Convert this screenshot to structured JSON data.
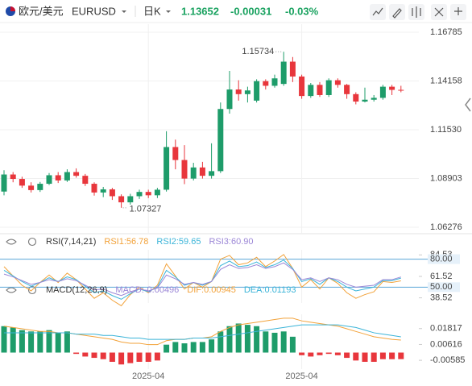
{
  "header": {
    "pair": "欧元/美元",
    "symbol": "EURUSD",
    "period": "日K",
    "price": "1.13652",
    "change": "-0.00031",
    "change_pct": "-0.03%"
  },
  "chart_data": [
    {
      "type": "candlestick",
      "up_color": "#1e9c6a",
      "down_color": "#e8363c",
      "grid": true,
      "categories": [
        null,
        null,
        null,
        null,
        null,
        null,
        null,
        null,
        null,
        null,
        null,
        null,
        null,
        null,
        null,
        null,
        "2025-04",
        null,
        null,
        null,
        null,
        null,
        null,
        null,
        null,
        null,
        null,
        null,
        null,
        null,
        null,
        null,
        null,
        "2025-04",
        null,
        null,
        null,
        null,
        null,
        null,
        null,
        null,
        null,
        null,
        null
      ],
      "open": [
        1.082,
        1.0912,
        1.0888,
        1.0852,
        1.0828,
        1.0862,
        1.0908,
        1.088,
        1.0925,
        1.0905,
        1.0862,
        1.0815,
        1.0832,
        1.0795,
        1.0762,
        1.0795,
        1.0818,
        1.08,
        1.083,
        1.106,
        1.099,
        1.089,
        1.095,
        1.0905,
        1.093,
        1.1265,
        1.137,
        1.1345,
        1.131,
        1.1415,
        1.139,
        1.14,
        1.152,
        1.144,
        1.1335,
        1.1395,
        1.134,
        1.142,
        1.1395,
        1.1345,
        1.1305,
        1.1315,
        1.1325,
        1.1385,
        1.1368
      ],
      "high": [
        1.0935,
        1.0925,
        1.09,
        1.087,
        1.0872,
        1.092,
        1.0925,
        1.094,
        1.0945,
        1.0915,
        1.087,
        1.0845,
        1.084,
        1.0805,
        1.0808,
        1.083,
        1.083,
        1.084,
        1.1145,
        1.11,
        1.107,
        1.0975,
        1.098,
        1.108,
        1.13,
        1.147,
        1.142,
        1.1385,
        1.1425,
        1.1425,
        1.145,
        1.15734,
        1.1545,
        1.145,
        1.1405,
        1.141,
        1.143,
        1.143,
        1.14,
        1.1355,
        1.138,
        1.134,
        1.1395,
        1.1395,
        1.139
      ],
      "low": [
        1.08,
        1.087,
        1.084,
        1.0815,
        1.0818,
        1.0855,
        1.0866,
        1.0872,
        1.0895,
        1.085,
        1.0798,
        1.079,
        1.0775,
        1.07327,
        1.075,
        1.078,
        1.0785,
        1.0785,
        1.082,
        1.094,
        1.086,
        1.088,
        1.089,
        1.089,
        1.092,
        1.124,
        1.131,
        1.13,
        1.13,
        1.137,
        1.138,
        1.139,
        1.141,
        1.132,
        1.1325,
        1.133,
        1.133,
        1.138,
        1.132,
        1.129,
        1.13,
        1.1305,
        1.1315,
        1.134,
        1.1355
      ],
      "close": [
        1.0912,
        1.0888,
        1.0852,
        1.0828,
        1.0862,
        1.0908,
        1.088,
        1.0925,
        1.0905,
        1.0862,
        1.0815,
        1.0832,
        1.0795,
        1.0762,
        1.0795,
        1.0818,
        1.08,
        1.083,
        1.106,
        1.099,
        1.089,
        1.095,
        1.0905,
        1.093,
        1.1265,
        1.137,
        1.1345,
        1.1365,
        1.1415,
        1.139,
        1.143,
        1.152,
        1.144,
        1.1335,
        1.1395,
        1.134,
        1.142,
        1.1395,
        1.1345,
        1.1305,
        1.1315,
        1.1325,
        1.1385,
        1.1368,
        1.13652
      ],
      "ylim": [
        1.0593,
        1.1722
      ],
      "yticks": [
        1.16785,
        1.14158,
        {
          "value": 1.1153,
          "label": "1.11530"
        },
        1.08903,
        1.06276
      ]
    },
    {
      "type": "line",
      "title": "RSI(7,14,21)",
      "ylim": [
        33,
        90
      ],
      "yticks": [
        84.53,
        61.52,
        38.52
      ],
      "hlines": [
        {
          "value": 80,
          "label": "80.00"
        },
        {
          "value": 50,
          "label": "50.00"
        }
      ],
      "hline_color": "#5aa6d8",
      "series": [
        {
          "name": "RSI1:56.78",
          "color": "#f2a23a",
          "values": [
            72,
            62,
            52,
            46,
            55,
            63,
            55,
            65,
            58,
            48,
            38,
            44,
            36,
            30,
            42,
            50,
            44,
            52,
            75,
            62,
            48,
            55,
            50,
            56,
            80,
            84,
            74,
            76,
            82,
            72,
            78,
            85,
            70,
            50,
            58,
            48,
            60,
            54,
            44,
            38,
            42,
            45,
            56,
            55,
            56.78
          ]
        },
        {
          "name": "RSI2:59.65",
          "color": "#3bb4d8",
          "values": [
            68,
            62,
            56,
            51,
            55,
            60,
            56,
            61,
            58,
            51,
            44,
            46,
            41,
            37,
            43,
            48,
            45,
            50,
            68,
            61,
            52,
            55,
            52,
            56,
            73,
            78,
            72,
            73,
            77,
            71,
            74,
            79,
            70,
            56,
            59,
            53,
            60,
            56,
            50,
            46,
            48,
            50,
            57,
            57,
            59.65
          ]
        },
        {
          "name": "RSI3:60.90",
          "color": "#9b86d6",
          "values": [
            64,
            61,
            57,
            53,
            55,
            58,
            56,
            59,
            57,
            52,
            47,
            48,
            44,
            41,
            45,
            48,
            46,
            49,
            63,
            59,
            53,
            55,
            53,
            56,
            69,
            74,
            70,
            71,
            74,
            70,
            72,
            76,
            69,
            58,
            60,
            56,
            60,
            58,
            53,
            50,
            51,
            52,
            58,
            58,
            60.9
          ]
        }
      ]
    },
    {
      "type": "macd",
      "title": "MACD(12,26,9)",
      "ylim": [
        -0.0125,
        0.029
      ],
      "yticks": [
        0.01817,
        0.00616,
        -0.00585
      ],
      "up_color": "#1e9c6a",
      "down_color": "#e8363c",
      "histogram": {
        "name": "MACD:-0.00496",
        "color": "#9b86d6",
        "values": [
          0.02,
          0.019,
          0.017,
          0.016,
          0.016,
          0.017,
          0.015,
          0.016,
          -0.001,
          -0.003,
          -0.004,
          -0.005,
          -0.007,
          -0.009,
          -0.008,
          -0.007,
          -0.007,
          -0.006,
          0.006,
          0.008,
          0.007,
          0.008,
          0.008,
          0.01,
          0.016,
          0.02,
          0.022,
          0.021,
          0.02,
          0.016,
          0.015,
          0.016,
          0.012,
          -0.002,
          -0.003,
          -0.002,
          -0.001,
          -0.002,
          -0.004,
          -0.006,
          -0.007,
          -0.007,
          -0.005,
          -0.005,
          -0.00496
        ]
      },
      "series": [
        {
          "name": "DIF:0.00945",
          "color": "#f2a23a",
          "values": [
            0.02,
            0.019,
            0.018,
            0.017,
            0.016,
            0.016,
            0.015,
            0.015,
            0.014,
            0.013,
            0.012,
            0.011,
            0.01,
            0.008,
            0.007,
            0.007,
            0.006,
            0.006,
            0.009,
            0.01,
            0.01,
            0.011,
            0.011,
            0.012,
            0.016,
            0.019,
            0.021,
            0.022,
            0.023,
            0.024,
            0.025,
            0.026,
            0.026,
            0.024,
            0.023,
            0.022,
            0.021,
            0.02,
            0.018,
            0.016,
            0.014,
            0.012,
            0.011,
            0.01,
            0.00945
          ]
        },
        {
          "name": "DEA:0.01193",
          "color": "#3bb4d8",
          "values": [
            0.015,
            0.015,
            0.015,
            0.015,
            0.015,
            0.015,
            0.015,
            0.015,
            0.014,
            0.014,
            0.014,
            0.013,
            0.013,
            0.012,
            0.011,
            0.011,
            0.01,
            0.01,
            0.01,
            0.01,
            0.01,
            0.011,
            0.011,
            0.011,
            0.012,
            0.013,
            0.014,
            0.015,
            0.016,
            0.017,
            0.018,
            0.019,
            0.02,
            0.021,
            0.021,
            0.021,
            0.021,
            0.021,
            0.02,
            0.019,
            0.017,
            0.015,
            0.014,
            0.013,
            0.01193
          ]
        }
      ]
    }
  ]
}
